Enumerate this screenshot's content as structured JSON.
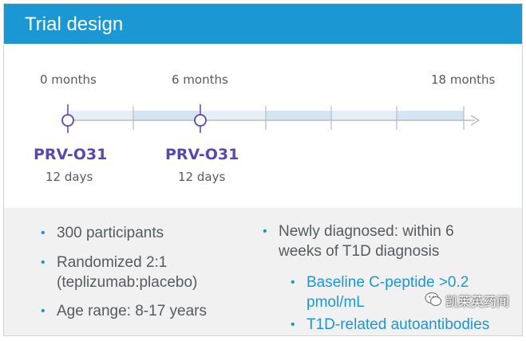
{
  "header": {
    "title": "Trial design"
  },
  "timeline": {
    "labels": {
      "start": "0 months",
      "mid": "6 months",
      "end": "18 months"
    },
    "doses": [
      {
        "drug": "PRV-O31",
        "duration": "12 days"
      },
      {
        "drug": "PRV-O31",
        "duration": "12 days"
      }
    ]
  },
  "details": {
    "left": [
      {
        "line1": "300 participants"
      },
      {
        "line1": "Randomized 2:1",
        "line2": "(teplizumab:placebo)"
      },
      {
        "line1": "Age range: 8-17 years"
      }
    ],
    "right": {
      "line1": "Newly diagnosed: within 6",
      "line2": "weeks of T1D diagnosis",
      "sub": [
        {
          "line1": "Baseline C-peptide >0.2",
          "line2": "pmol/mL"
        },
        {
          "line1": "T1D-related autoantibodies"
        }
      ]
    }
  },
  "watermark": {
    "text": "凯莱英药闻"
  },
  "colors": {
    "accent": "#1b97d4",
    "drug": "#5a48b0",
    "segment": "#dbe9f5",
    "text": "#555b60"
  }
}
